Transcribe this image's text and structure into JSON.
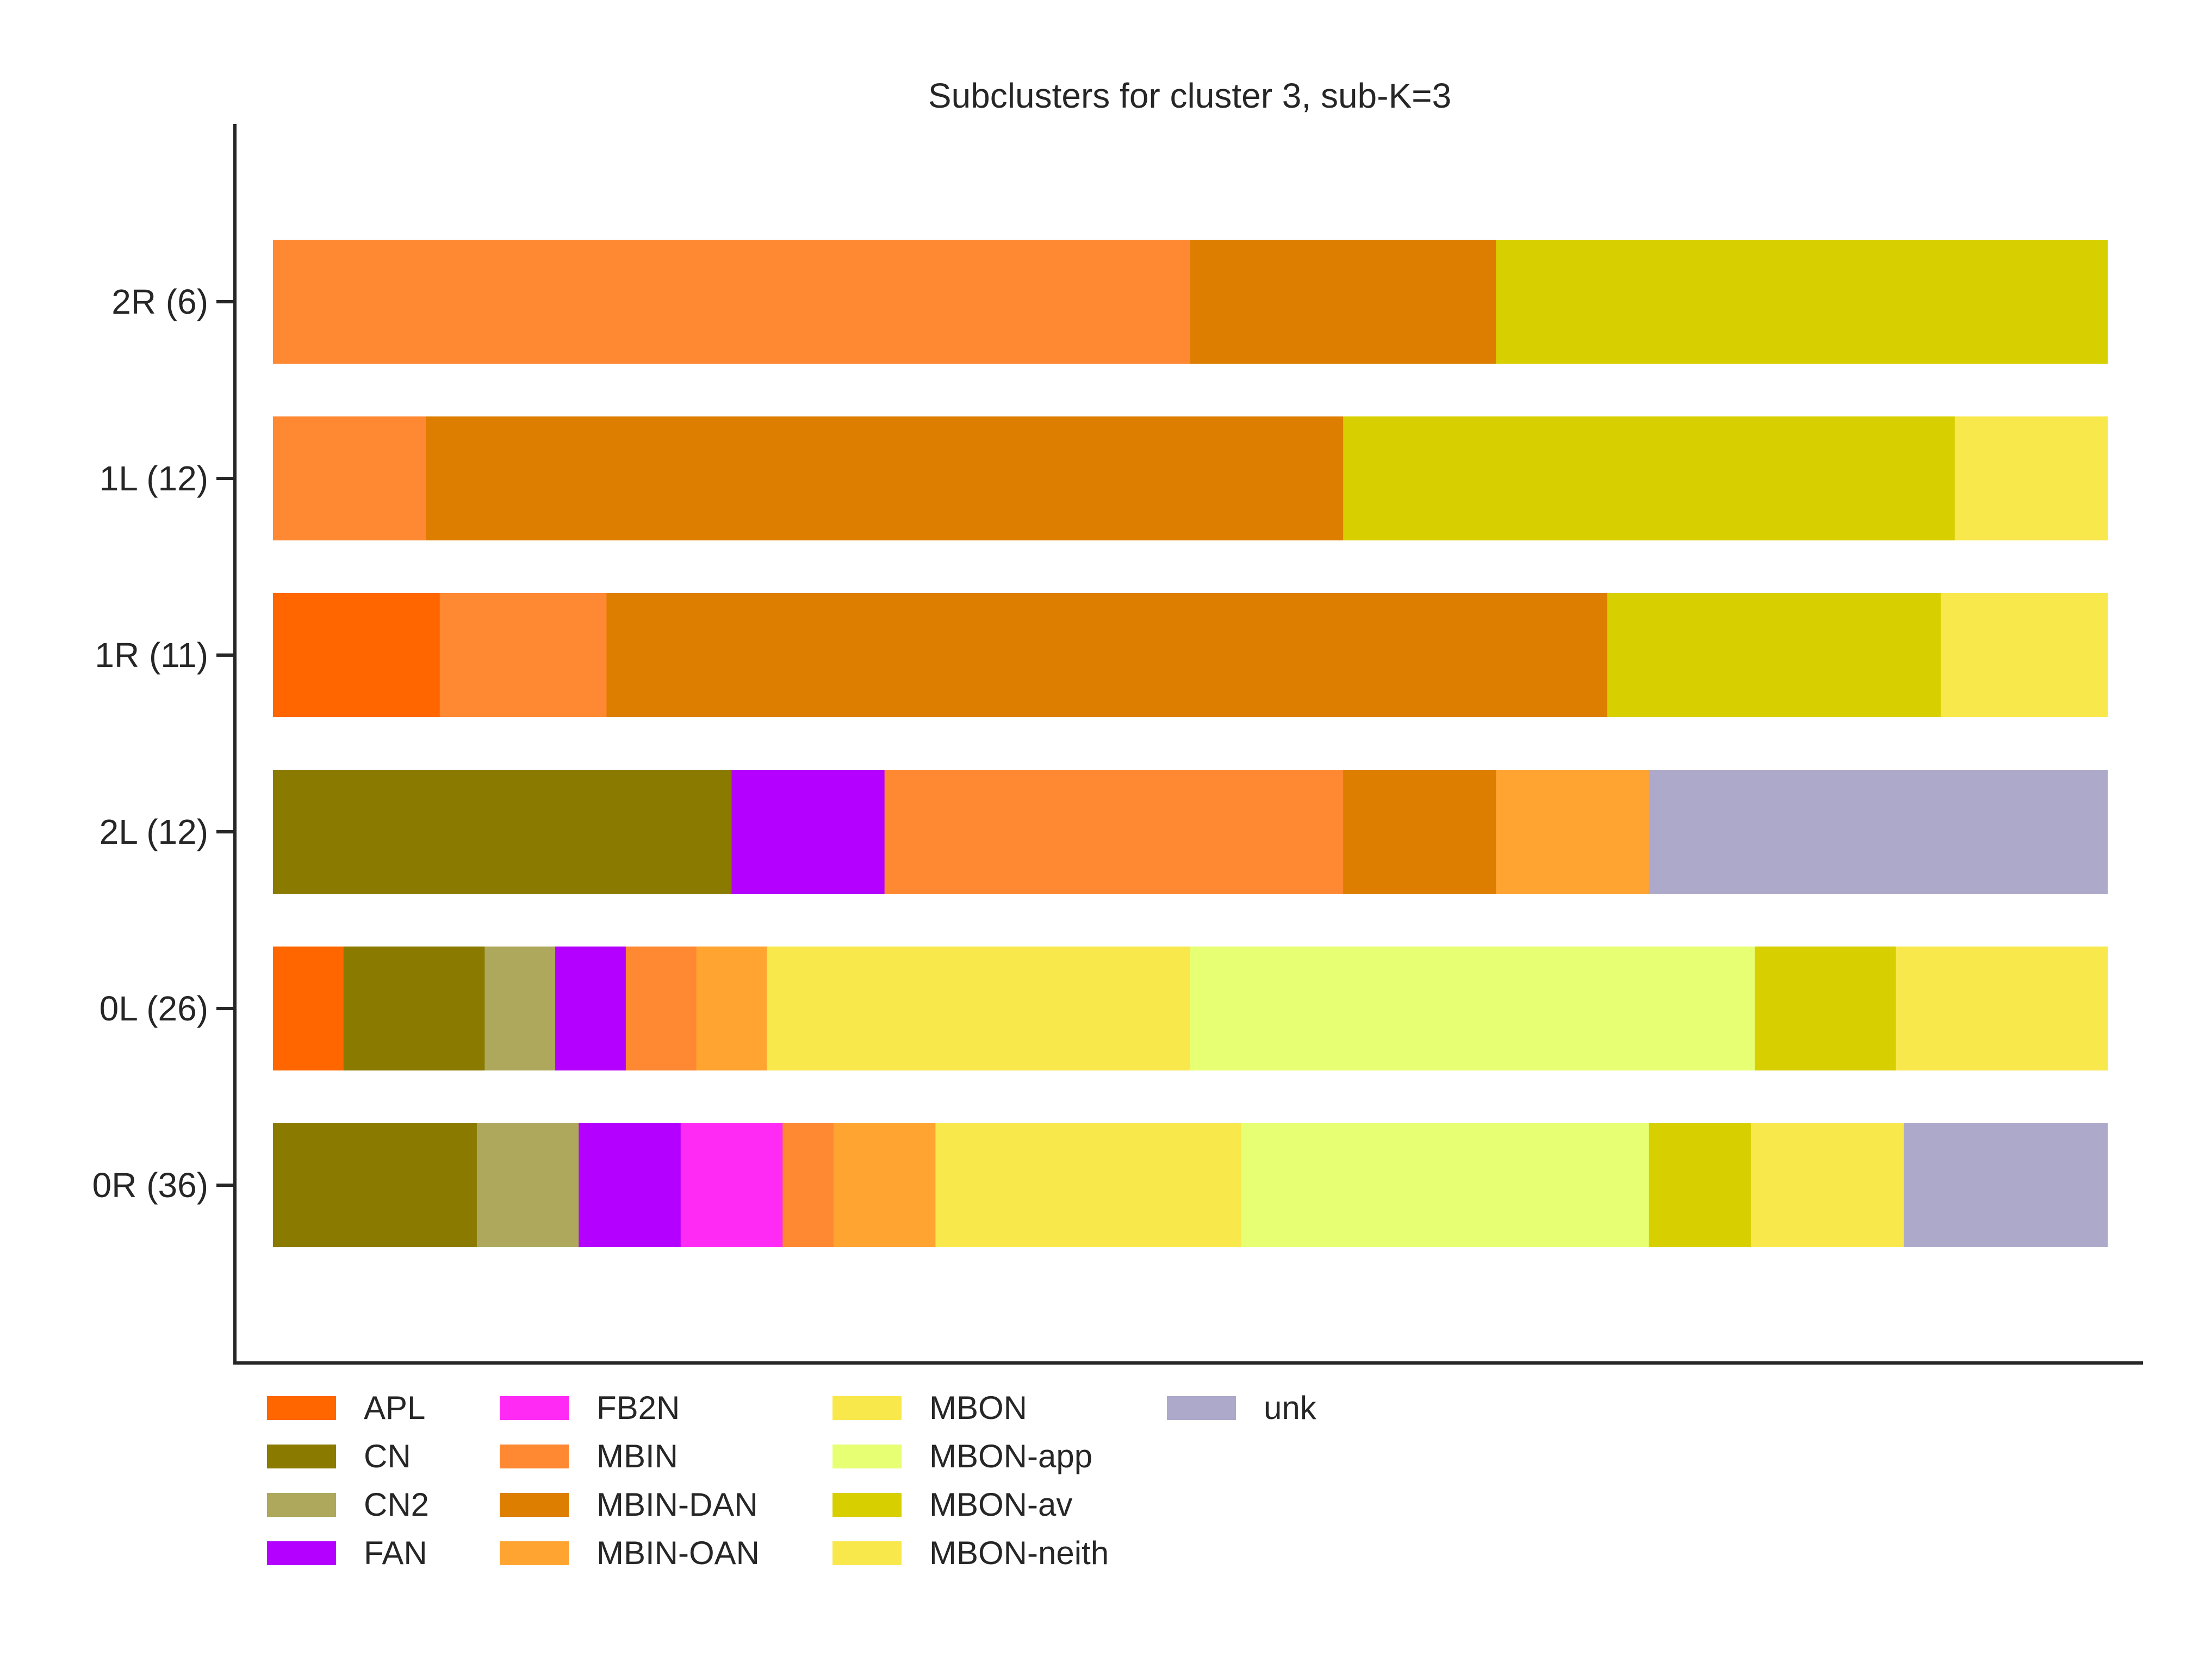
{
  "chart_data": {
    "type": "bar",
    "orientation": "horizontal",
    "stacked": true,
    "normalized": true,
    "title": "Subclusters for cluster 3, sub-K=3",
    "xlabel": "",
    "ylabel": "",
    "xlim": [
      0,
      1
    ],
    "grid": false,
    "legend_position": "bottom-left",
    "categories": [
      "0R (36)",
      "0L (26)",
      "2L (12)",
      "1R (11)",
      "1L (12)",
      "2R (6)"
    ],
    "series": [
      {
        "name": "APL",
        "color": "#FF6600",
        "values": [
          0,
          1,
          0,
          1,
          0,
          0
        ]
      },
      {
        "name": "CN",
        "color": "#8B7A00",
        "values": [
          4,
          2,
          3,
          0,
          0,
          0
        ]
      },
      {
        "name": "CN2",
        "color": "#ADA85B",
        "values": [
          2,
          1,
          0,
          0,
          0,
          0
        ]
      },
      {
        "name": "FAN",
        "color": "#B300FF",
        "values": [
          2,
          1,
          1,
          0,
          0,
          0
        ]
      },
      {
        "name": "FB2N",
        "color": "#FF2BF4",
        "values": [
          2,
          0,
          0,
          0,
          0,
          0
        ]
      },
      {
        "name": "MBIN",
        "color": "#FF8833",
        "values": [
          1,
          1,
          3,
          1,
          1,
          3
        ]
      },
      {
        "name": "MBIN-DAN",
        "color": "#DD7E00",
        "values": [
          0,
          0,
          1,
          6,
          6,
          1
        ]
      },
      {
        "name": "MBIN-OAN",
        "color": "#FFA431",
        "values": [
          2,
          1,
          1,
          0,
          0,
          0
        ]
      },
      {
        "name": "MBON",
        "color": "#F8E84C",
        "values": [
          6,
          6,
          0,
          0,
          0,
          0
        ]
      },
      {
        "name": "MBON-app",
        "color": "#E6FF73",
        "values": [
          8,
          8,
          0,
          0,
          0,
          0
        ]
      },
      {
        "name": "MBON-av",
        "color": "#D8CF00",
        "values": [
          2,
          2,
          0,
          2,
          4,
          2
        ]
      },
      {
        "name": "MBON-neith",
        "color": "#F8E84C",
        "values": [
          3,
          3,
          0,
          1,
          1,
          0
        ]
      },
      {
        "name": "unk",
        "color": "#ADA9CA",
        "values": [
          4,
          0,
          3,
          0,
          0,
          0
        ]
      }
    ]
  }
}
